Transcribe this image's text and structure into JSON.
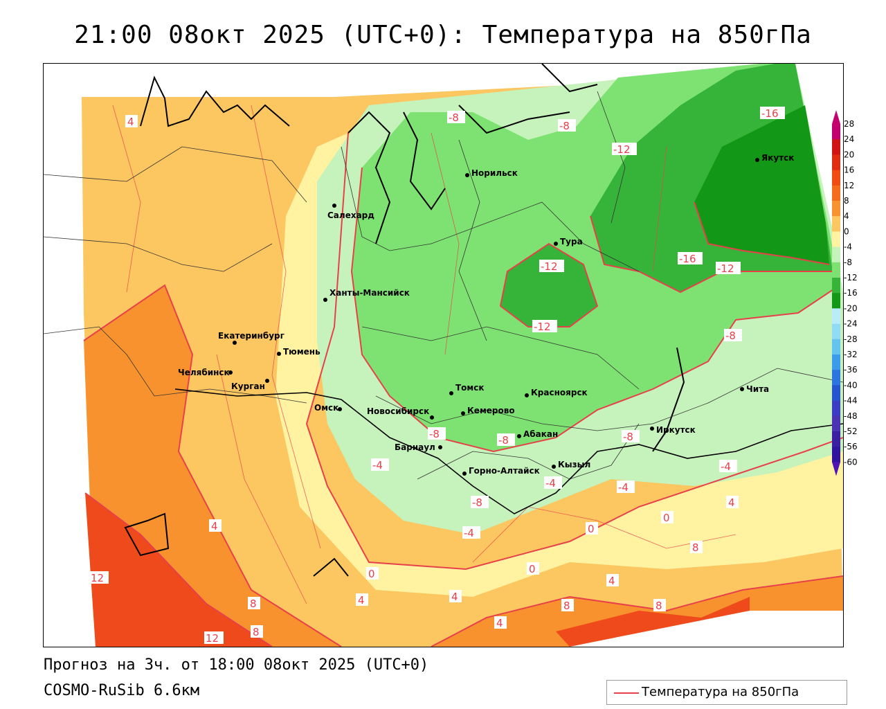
{
  "title": "21:00 08окт 2025 (UTC+0): Температура на 850гПа",
  "forecast_line": "Прогноз на 3ч. от 18:00 08окт 2025 (UTC+0)",
  "model_line": "COSMO-RuSib 6.6км",
  "legend": {
    "label": "Температура на 850гПа",
    "line_color": "#e8404a"
  },
  "colors": {
    "isoline": "#e8404a",
    "band_very_warm": "#ee4a1c",
    "band_warm": "#f8922e",
    "band_mild": "#fcc660",
    "band_cool": "#fff2a0",
    "band_near_zero": "#c6f2bc",
    "band_cold": "#7ee272",
    "band_very_cold": "#36b43a",
    "band_extreme_cold": "#129816"
  },
  "cities": [
    {
      "name": "Норильск"
    },
    {
      "name": "Салехард"
    },
    {
      "name": "Тура"
    },
    {
      "name": "Якутск"
    },
    {
      "name": "Ханты-Мансийск"
    },
    {
      "name": "Екатеринбург"
    },
    {
      "name": "Тюмень"
    },
    {
      "name": "Челябинск"
    },
    {
      "name": "Курган"
    },
    {
      "name": "Омск"
    },
    {
      "name": "Новосибирск"
    },
    {
      "name": "Томск"
    },
    {
      "name": "Кемерово"
    },
    {
      "name": "Красноярск"
    },
    {
      "name": "Барнаул"
    },
    {
      "name": "Абакан"
    },
    {
      "name": "Горно-Алтайск"
    },
    {
      "name": "Кызыл"
    },
    {
      "name": "Иркутск"
    },
    {
      "name": "Чита"
    }
  ],
  "isotherm_labels": [
    "4",
    "-8",
    "-8",
    "-12",
    "-16",
    "-12",
    "-16",
    "-12",
    "-12",
    "-8",
    "-8",
    "-8",
    "-8",
    "-8",
    "-4",
    "-4",
    "-4",
    "-4",
    "4",
    "0",
    "0",
    "0",
    "4",
    "8",
    "12",
    "12",
    "8",
    "8",
    "4",
    "4",
    "0",
    "4",
    "4",
    "8",
    "8",
    "-4"
  ],
  "colorbar": {
    "labels": [
      "28",
      "24",
      "20",
      "16",
      "12",
      "8",
      "4",
      "0",
      "-4",
      "-8",
      "-12",
      "-16",
      "-20",
      "-24",
      "-28",
      "-32",
      "-36",
      "-40",
      "-44",
      "-48",
      "-52",
      "-56",
      "-60"
    ],
    "colors": [
      "#c4006e",
      "#d01414",
      "#e02c10",
      "#f04c14",
      "#f46c1c",
      "#f8922e",
      "#fcc660",
      "#fff2a0",
      "#c6f2bc",
      "#7ee272",
      "#36b43a",
      "#129816",
      "#b8ecf8",
      "#90dcf4",
      "#64c4f0",
      "#3c9cec",
      "#2c74e0",
      "#2454d0",
      "#3a3cc4",
      "#4a34b4",
      "#3c20a4",
      "#3014a0",
      "#5014b4"
    ]
  }
}
